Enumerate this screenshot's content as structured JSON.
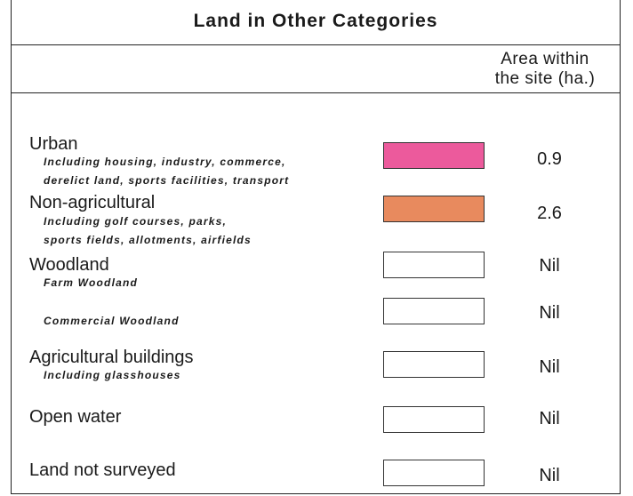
{
  "title": "Land in Other Categories",
  "column_header": [
    "Area within",
    "the site (ha.)"
  ],
  "rows": [
    {
      "name": "Urban",
      "description": [
        "Including housing, industry, commerce,",
        "derelict land, sports facilities, transport"
      ],
      "color": "#ec5a9c",
      "value": 0.9
    },
    {
      "name": "Non-agricultural",
      "description": [
        "Including golf courses, parks,",
        "sports fields, allotments, airfields"
      ],
      "color": "#e88a5e",
      "value": 2.6
    },
    {
      "name": "Woodland",
      "description": [
        "Farm Woodland"
      ],
      "color": "#ffffff",
      "value": "Nil"
    },
    {
      "description": [
        "Commercial Woodland"
      ],
      "color": "#ffffff",
      "value": "Nil"
    },
    {
      "name": "Agricultural buildings",
      "description": [
        "Including glasshouses"
      ],
      "color": "#ffffff",
      "value": "Nil"
    },
    {
      "name": "Open water",
      "description": [],
      "color": "#ffffff",
      "value": "Nil"
    },
    {
      "name": "Land not surveyed",
      "description": [],
      "color": "#ffffff",
      "value": "Nil"
    }
  ]
}
